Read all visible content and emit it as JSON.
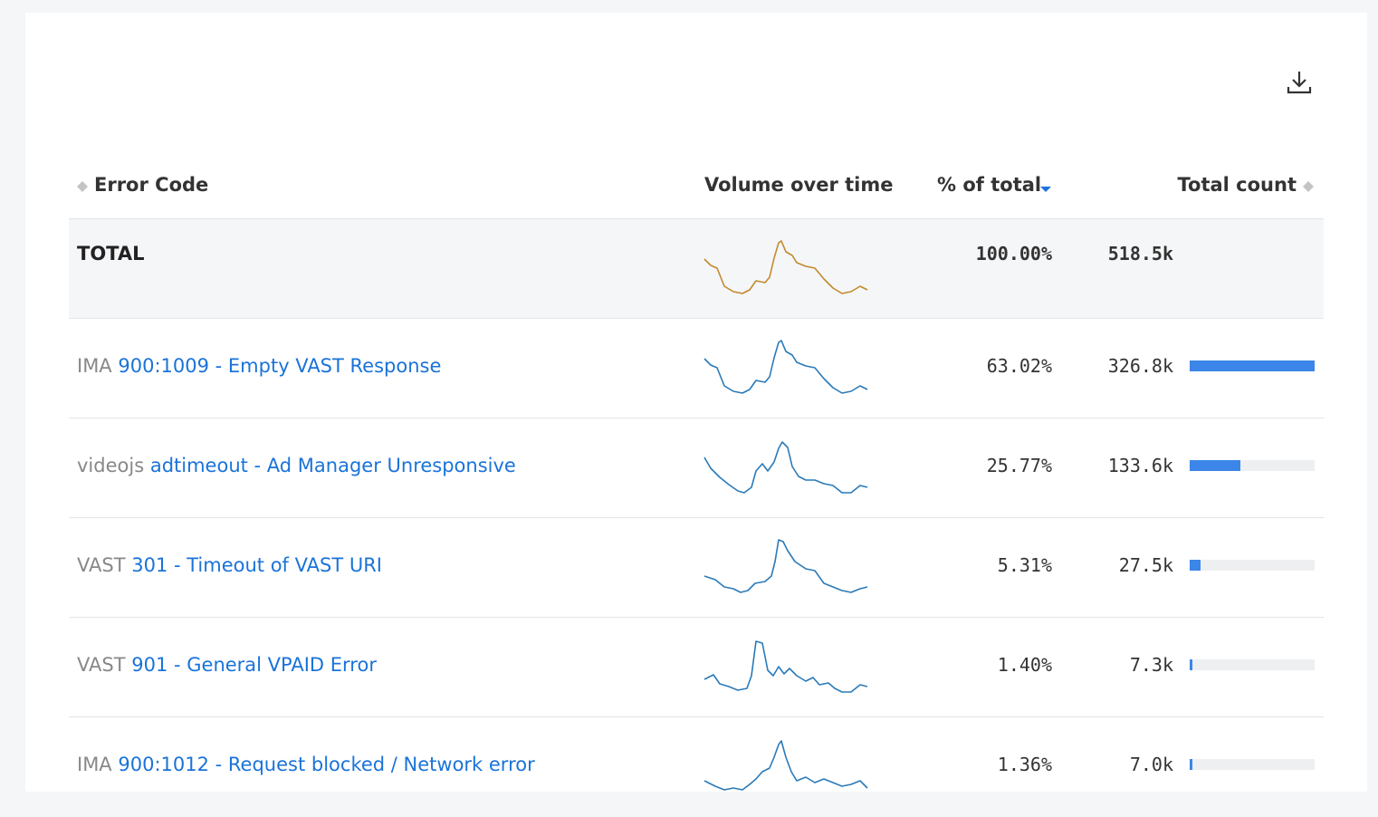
{
  "table": {
    "columns": [
      "Error Code",
      "Volume over time",
      "% of total",
      "Total count"
    ],
    "total": {
      "label": "TOTAL",
      "pct": "100.00%",
      "count": "518.5k"
    },
    "rows": [
      {
        "prefix": "IMA",
        "code": "900:1009 - Empty VAST Response",
        "pct": "63.02%",
        "count": "326.8k"
      },
      {
        "prefix": "videojs",
        "code": "adtimeout - Ad Manager Unresponsive",
        "pct": "25.77%",
        "count": "133.6k"
      },
      {
        "prefix": "VAST",
        "code": "301 - Timeout of VAST URI",
        "pct": "5.31%",
        "count": "27.5k"
      },
      {
        "prefix": "VAST",
        "code": "901 - General VPAID Error",
        "pct": "1.40%",
        "count": "7.3k"
      },
      {
        "prefix": "IMA",
        "code": "900:1012 - Request blocked / Network error",
        "pct": "1.36%",
        "count": "7.0k"
      }
    ]
  }
}
